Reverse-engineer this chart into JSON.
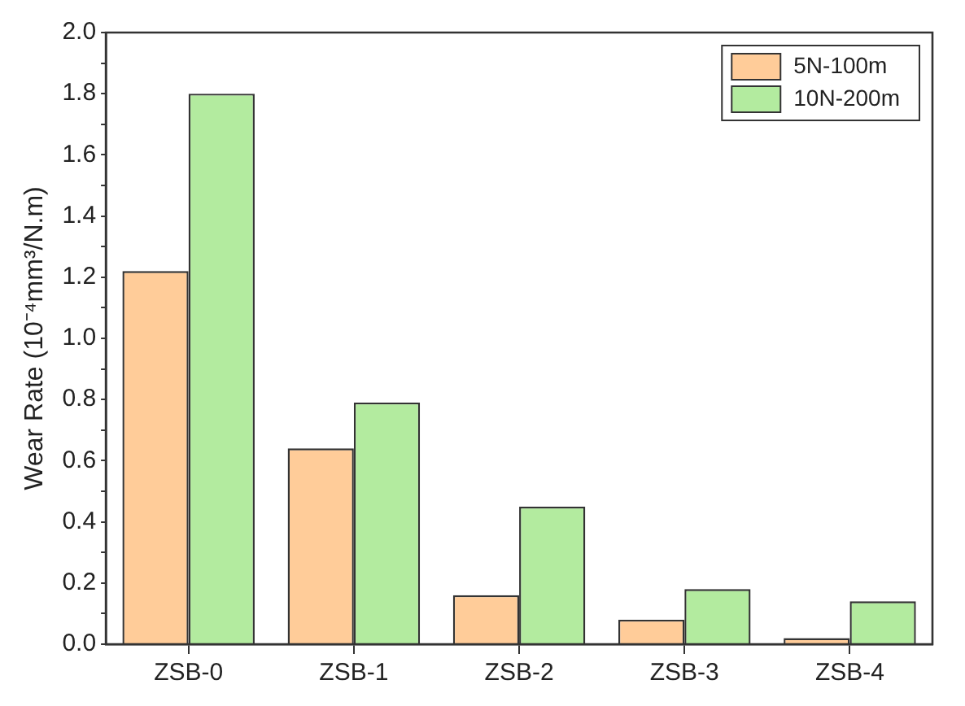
{
  "chart_data": {
    "type": "bar",
    "ylabel": "Wear Rate (10⁻⁴mm³/N.m)",
    "categories": [
      "ZSB-0",
      "ZSB-1",
      "ZSB-2",
      "ZSB-3",
      "ZSB-4"
    ],
    "series": [
      {
        "name": "5N-100m",
        "color": "#ffcc99",
        "values": [
          1.22,
          0.64,
          0.16,
          0.08,
          0.02
        ]
      },
      {
        "name": "10N-200m",
        "color": "#b3eb9f",
        "values": [
          1.8,
          0.79,
          0.45,
          0.18,
          0.14
        ]
      }
    ],
    "ylim": [
      0,
      2
    ],
    "yticks": [
      {
        "value": 0,
        "label": "0.0"
      },
      {
        "value": 0.1,
        "label": null
      },
      {
        "value": 0.2,
        "label": "0.2"
      },
      {
        "value": 0.3,
        "label": null
      },
      {
        "value": 0.4,
        "label": "0.4"
      },
      {
        "value": 0.5,
        "label": null
      },
      {
        "value": 0.6,
        "label": "0.6"
      },
      {
        "value": 0.7,
        "label": null
      },
      {
        "value": 0.8,
        "label": "0.8"
      },
      {
        "value": 0.9,
        "label": null
      },
      {
        "value": 1,
        "label": "1.0"
      },
      {
        "value": 1.1,
        "label": null
      },
      {
        "value": 1.2,
        "label": "1.2"
      },
      {
        "value": 1.3,
        "label": null
      },
      {
        "value": 1.4,
        "label": "1.4"
      },
      {
        "value": 1.5,
        "label": null
      },
      {
        "value": 1.6,
        "label": "1.6"
      },
      {
        "value": 1.7,
        "label": null
      },
      {
        "value": 1.8,
        "label": "1.8"
      },
      {
        "value": 1.9,
        "label": null
      },
      {
        "value": 2,
        "label": "2.0"
      }
    ],
    "grid": false,
    "legend": "top right"
  }
}
